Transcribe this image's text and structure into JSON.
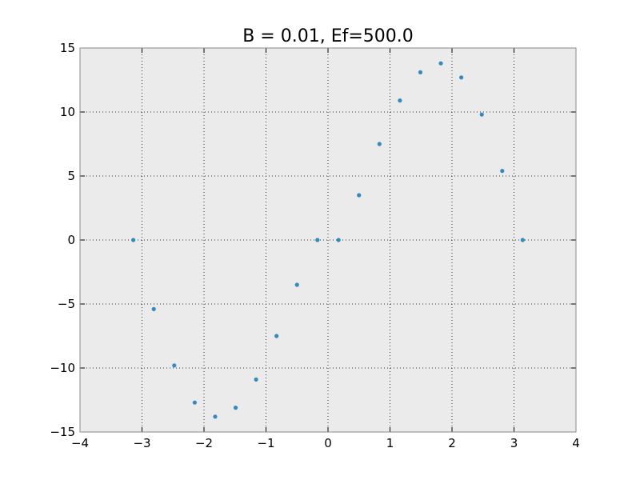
{
  "chart_data": {
    "type": "scatter",
    "title": "B = 0.01, Ef=500.0",
    "xlabel": "",
    "ylabel": "",
    "xlim": [
      -4,
      4
    ],
    "ylim": [
      -15,
      15
    ],
    "x_ticks": [
      -4,
      -3,
      -2,
      -1,
      0,
      1,
      2,
      3,
      4
    ],
    "y_ticks": [
      -15,
      -10,
      -5,
      0,
      5,
      10,
      15
    ],
    "x_tick_labels": [
      "−4",
      "−3",
      "−2",
      "−1",
      "0",
      "1",
      "2",
      "3",
      "4"
    ],
    "y_tick_labels": [
      "−15",
      "−10",
      "−5",
      "0",
      "5",
      "10",
      "15"
    ],
    "grid": true,
    "legend": "none",
    "series": [
      {
        "color": "#348abd",
        "x": [
          -3.14,
          -2.81,
          -2.48,
          -2.15,
          -1.82,
          -1.49,
          -1.16,
          -0.83,
          -0.5,
          -0.17,
          0.17,
          0.5,
          0.83,
          1.16,
          1.49,
          1.82,
          2.15,
          2.48,
          2.81,
          3.14
        ],
        "y": [
          0.0,
          -5.4,
          -9.8,
          -12.7,
          -13.8,
          -13.1,
          -10.9,
          -7.5,
          -3.5,
          0.0,
          0.0,
          3.5,
          7.5,
          10.9,
          13.1,
          13.8,
          12.7,
          9.8,
          5.4,
          0.0
        ]
      }
    ]
  },
  "style": {
    "plot_background": "#ebebeb",
    "axes_edge": "#888888",
    "grid_color": "#333333"
  }
}
